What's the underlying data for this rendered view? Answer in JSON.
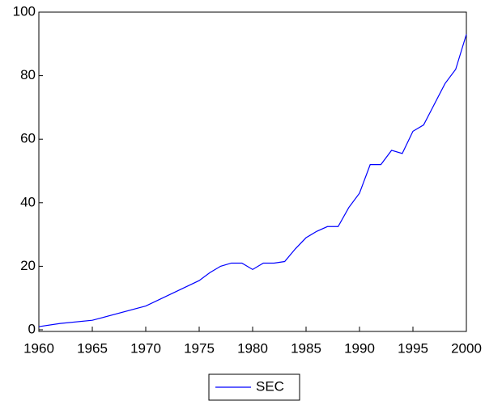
{
  "chart_data": {
    "type": "line",
    "x": [
      1960,
      1962,
      1965,
      1970,
      1975,
      1976,
      1977,
      1978,
      1979,
      1980,
      1981,
      1982,
      1983,
      1984,
      1985,
      1986,
      1987,
      1988,
      1989,
      1990,
      1991,
      1992,
      1993,
      1994,
      1995,
      1996,
      1997,
      1998,
      1999,
      2000
    ],
    "series": [
      {
        "name": "SEC",
        "color": "#0000ff",
        "values": [
          1,
          2,
          3,
          7.5,
          15.5,
          18,
          20,
          21,
          21,
          19,
          21,
          21,
          21.5,
          25.5,
          29,
          31,
          32.5,
          32.5,
          38.5,
          43,
          52,
          52,
          56.5,
          55.5,
          62.5,
          64.5,
          71,
          77.5,
          82,
          93
        ]
      }
    ],
    "xlim": [
      1960,
      2000
    ],
    "xticks": [
      1960,
      1965,
      1970,
      1975,
      1980,
      1985,
      1990,
      1995,
      2000
    ],
    "ylim": [
      0,
      100
    ],
    "yticks": [
      0,
      20,
      40,
      60,
      80,
      100
    ],
    "grid": false,
    "legend": "bottom"
  }
}
